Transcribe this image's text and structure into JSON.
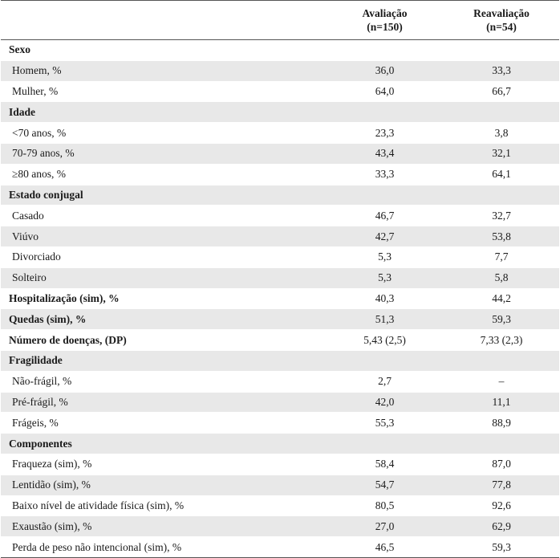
{
  "header": {
    "col1": "",
    "col2_line1": "Avaliação",
    "col2_line2": "(n=150)",
    "col3_line1": "Reavaliação",
    "col3_line2": "(n=54)"
  },
  "rows": [
    {
      "label": "Sexo",
      "avaliacao": "",
      "reavaliacao": "",
      "section": true
    },
    {
      "label": "Homem, %",
      "avaliacao": "36,0",
      "reavaliacao": "33,3",
      "section": false
    },
    {
      "label": "Mulher, %",
      "avaliacao": "64,0",
      "reavaliacao": "66,7",
      "section": false
    },
    {
      "label": "Idade",
      "avaliacao": "",
      "reavaliacao": "",
      "section": true
    },
    {
      "label": "<70 anos, %",
      "avaliacao": "23,3",
      "reavaliacao": "3,8",
      "section": false
    },
    {
      "label": "70-79 anos, %",
      "avaliacao": "43,4",
      "reavaliacao": "32,1",
      "section": false
    },
    {
      "label": "≥80 anos, %",
      "avaliacao": "33,3",
      "reavaliacao": "64,1",
      "section": false
    },
    {
      "label": "Estado conjugal",
      "avaliacao": "",
      "reavaliacao": "",
      "section": true
    },
    {
      "label": "Casado",
      "avaliacao": "46,7",
      "reavaliacao": "32,7",
      "section": false
    },
    {
      "label": "Viúvo",
      "avaliacao": "42,7",
      "reavaliacao": "53,8",
      "section": false
    },
    {
      "label": "Divorciado",
      "avaliacao": "5,3",
      "reavaliacao": "7,7",
      "section": false
    },
    {
      "label": "Solteiro",
      "avaliacao": "5,3",
      "reavaliacao": "5,8",
      "section": false
    },
    {
      "label": "Hospitalização (sim), %",
      "avaliacao": "40,3",
      "reavaliacao": "44,2",
      "section": true
    },
    {
      "label": "Quedas (sim), %",
      "avaliacao": "51,3",
      "reavaliacao": "59,3",
      "section": true
    },
    {
      "label": "Número de doenças, (DP)",
      "avaliacao": "5,43 (2,5)",
      "reavaliacao": "7,33 (2,3)",
      "section": true
    },
    {
      "label": "Fragilidade",
      "avaliacao": "",
      "reavaliacao": "",
      "section": true
    },
    {
      "label": "Não-frágil, %",
      "avaliacao": "2,7",
      "reavaliacao": "–",
      "section": false
    },
    {
      "label": "Pré-frágil, %",
      "avaliacao": "42,0",
      "reavaliacao": "11,1",
      "section": false
    },
    {
      "label": "Frágeis, %",
      "avaliacao": "55,3",
      "reavaliacao": "88,9",
      "section": false
    },
    {
      "label": "Componentes",
      "avaliacao": "",
      "reavaliacao": "",
      "section": true
    },
    {
      "label": "Fraqueza (sim), %",
      "avaliacao": "58,4",
      "reavaliacao": "87,0",
      "section": false
    },
    {
      "label": "Lentidão (sim), %",
      "avaliacao": "54,7",
      "reavaliacao": "77,8",
      "section": false
    },
    {
      "label": "Baixo nível de atividade física (sim), %",
      "avaliacao": "80,5",
      "reavaliacao": "92,6",
      "section": false
    },
    {
      "label": "Exaustão (sim), %",
      "avaliacao": "27,0",
      "reavaliacao": "62,9",
      "section": false
    },
    {
      "label": "Perda de peso não intencional (sim), %",
      "avaliacao": "46,5",
      "reavaliacao": "59,3",
      "section": false
    }
  ]
}
